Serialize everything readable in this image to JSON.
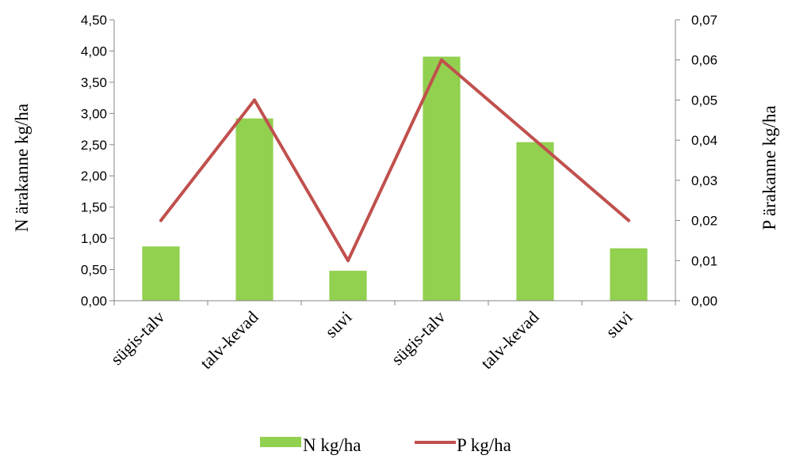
{
  "chart_data": {
    "type": "bar+line",
    "categories": [
      "sügis-talv",
      "talv-kevad",
      "suvi",
      "sügis-talv",
      "talv-kevad",
      "suvi"
    ],
    "series": [
      {
        "name": "N kg/ha",
        "type": "bar",
        "axis": "left",
        "values": [
          0.87,
          2.92,
          0.48,
          3.91,
          2.54,
          0.84
        ],
        "color": "#92d050"
      },
      {
        "name": "P kg/ha",
        "type": "line",
        "axis": "right",
        "values": [
          0.02,
          0.05,
          0.01,
          0.06,
          0.04,
          0.02
        ],
        "color": "#c0504d"
      }
    ],
    "ylabel": "N ärakanne kg/ha",
    "y2label": "P ärakanne kg/ha",
    "ylim": [
      0,
      4.5
    ],
    "y2lim": [
      0,
      0.07
    ],
    "yticks": [
      "0,00",
      "0,50",
      "1,00",
      "1,50",
      "2,00",
      "2,50",
      "3,00",
      "3,50",
      "4,00",
      "4,50"
    ],
    "y2ticks": [
      "0,00",
      "0,01",
      "0,02",
      "0,03",
      "0,04",
      "0,05",
      "0,06",
      "0,07"
    ],
    "grid": false,
    "legend": "bottom"
  }
}
